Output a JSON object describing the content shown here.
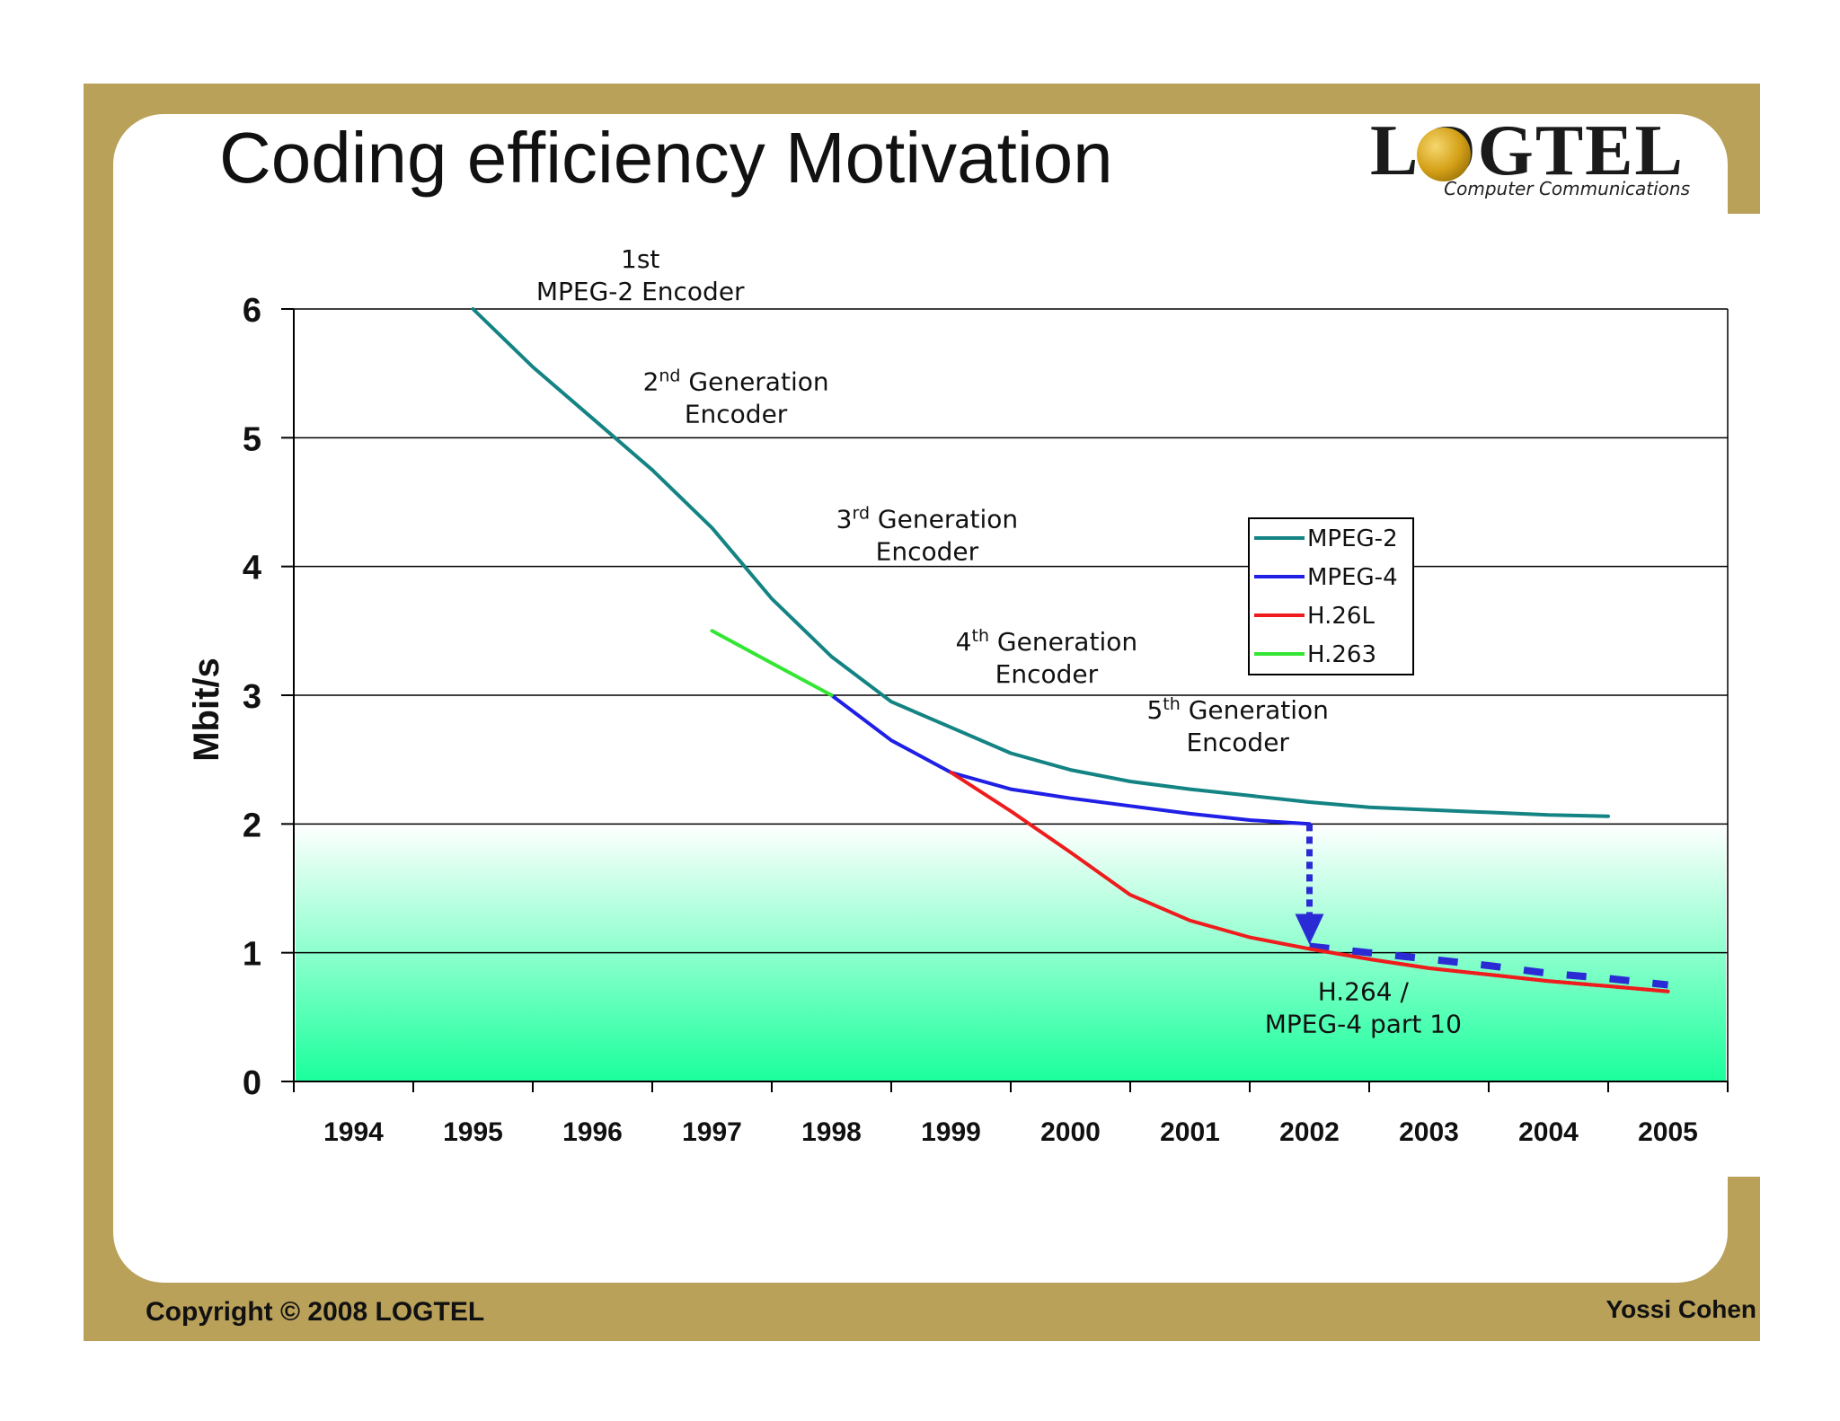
{
  "slide": {
    "title": "Coding efficiency Motivation",
    "logo_text": "LOGTEL",
    "logo_subtitle": "Computer Communications",
    "copyright": "Copyright © 2008 LOGTEL",
    "author": "Yossi Cohen",
    "frame_color": "#b9a15a"
  },
  "chart_data": {
    "type": "line",
    "ylabel": "Mbit/s",
    "xlabel": "",
    "ylim": [
      0,
      6
    ],
    "xlim": [
      1993.5,
      2005.5
    ],
    "yticks": [
      0,
      1,
      2,
      3,
      4,
      5,
      6
    ],
    "xticks": [
      "1994",
      "1995",
      "1996",
      "1997",
      "1998",
      "1999",
      "2000",
      "2001",
      "2002",
      "2003",
      "2004",
      "2005"
    ],
    "grid": true,
    "legend_position": "right",
    "target_band": {
      "from": 0,
      "to": 2,
      "top_color": "#ffffff",
      "bottom_color": "#1aff9c"
    },
    "series": [
      {
        "name": "MPEG-2",
        "color": "#138383",
        "style": "solid",
        "points": [
          [
            1995.0,
            6.0
          ],
          [
            1995.5,
            5.55
          ],
          [
            1996.0,
            5.15
          ],
          [
            1996.5,
            4.75
          ],
          [
            1997.0,
            4.3
          ],
          [
            1997.5,
            3.75
          ],
          [
            1998.0,
            3.3
          ],
          [
            1998.5,
            2.95
          ],
          [
            1999.0,
            2.75
          ],
          [
            1999.5,
            2.55
          ],
          [
            2000.0,
            2.42
          ],
          [
            2000.5,
            2.33
          ],
          [
            2001.0,
            2.27
          ],
          [
            2001.5,
            2.22
          ],
          [
            2002.0,
            2.17
          ],
          [
            2002.5,
            2.13
          ],
          [
            2003.0,
            2.11
          ],
          [
            2003.5,
            2.09
          ],
          [
            2004.0,
            2.07
          ],
          [
            2004.5,
            2.06
          ]
        ]
      },
      {
        "name": "MPEG-4",
        "color": "#1f1fe6",
        "style": "solid",
        "points": [
          [
            1998.0,
            3.0
          ],
          [
            1998.5,
            2.65
          ],
          [
            1999.0,
            2.4
          ],
          [
            1999.5,
            2.27
          ],
          [
            2000.0,
            2.2
          ],
          [
            2000.5,
            2.14
          ],
          [
            2001.0,
            2.08
          ],
          [
            2001.5,
            2.03
          ],
          [
            2002.0,
            2.0
          ]
        ]
      },
      {
        "name": "H.26L",
        "color": "#ee1c1c",
        "style": "solid",
        "points": [
          [
            1999.0,
            2.4
          ],
          [
            1999.5,
            2.1
          ],
          [
            2000.0,
            1.78
          ],
          [
            2000.5,
            1.45
          ],
          [
            2001.0,
            1.25
          ],
          [
            2001.5,
            1.12
          ],
          [
            2002.0,
            1.03
          ],
          [
            2002.5,
            0.95
          ],
          [
            2003.0,
            0.88
          ],
          [
            2003.5,
            0.83
          ],
          [
            2004.0,
            0.78
          ],
          [
            2004.5,
            0.74
          ],
          [
            2005.0,
            0.7
          ]
        ]
      },
      {
        "name": "H.263",
        "color": "#33e633",
        "style": "solid",
        "points": [
          [
            1997.0,
            3.5
          ],
          [
            1997.5,
            3.25
          ],
          [
            1998.0,
            3.0
          ]
        ]
      },
      {
        "name": "H.264 / MPEG-4 part 10",
        "color": "#2b2bd6",
        "style": "dashed",
        "points": [
          [
            2002.0,
            1.05
          ],
          [
            2002.5,
            1.0
          ],
          [
            2003.0,
            0.95
          ],
          [
            2003.5,
            0.9
          ],
          [
            2004.0,
            0.84
          ],
          [
            2004.5,
            0.8
          ],
          [
            2005.0,
            0.75
          ]
        ]
      }
    ],
    "arrow": {
      "x": 2002.0,
      "from": 2.0,
      "to": 1.05,
      "color": "#2b2bd6"
    },
    "annotations": [
      {
        "lines": [
          "1st",
          "MPEG-2 Encoder"
        ],
        "x": 1996.4,
        "y": 6.32
      },
      {
        "lines": [
          "2nd Generation",
          "Encoder"
        ],
        "x": 1997.2,
        "y": 5.37
      },
      {
        "lines": [
          "3rd Generation",
          "Encoder"
        ],
        "x": 1998.8,
        "y": 4.3
      },
      {
        "lines": [
          "4th Generation",
          "Encoder"
        ],
        "x": 1999.8,
        "y": 3.35
      },
      {
        "lines": [
          "5th Generation",
          "Encoder"
        ],
        "x": 2001.4,
        "y": 2.82
      },
      {
        "lines": [
          "H.264 /",
          "MPEG-4 part 10"
        ],
        "x": 2002.45,
        "y": 0.63
      }
    ]
  }
}
